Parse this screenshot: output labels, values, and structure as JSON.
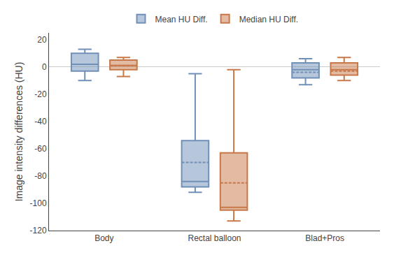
{
  "chart_data": {
    "type": "box",
    "ylabel": "Image intensity differences (HU)",
    "categories": [
      "Body",
      "Rectal balloon",
      "Blad+Pros"
    ],
    "ylim": [
      -120,
      25
    ],
    "yticks": [
      20,
      0,
      -20,
      -40,
      -60,
      -80,
      -100,
      -120
    ],
    "grid": false,
    "legend": "top",
    "series": [
      {
        "name": "Mean HU Diff.",
        "color": "#7090b8",
        "q1": [
          -3,
          -88,
          -8
        ],
        "median": [
          2,
          -84,
          -2
        ],
        "q3": [
          10,
          -54,
          3
        ],
        "whislo": [
          -10,
          -92,
          -13
        ],
        "whishi": [
          13,
          -5,
          6
        ],
        "mean": [
          2,
          -70,
          -4
        ]
      },
      {
        "name": "Median HU Diff.",
        "color": "#c87848",
        "q1": [
          -2,
          -105,
          -6
        ],
        "median": [
          1,
          -103,
          -2
        ],
        "q3": [
          5,
          -63,
          3
        ],
        "whislo": [
          -7,
          -113,
          -10
        ],
        "whishi": [
          7,
          -2,
          7
        ],
        "mean": [
          1,
          -85,
          -3
        ]
      }
    ]
  }
}
